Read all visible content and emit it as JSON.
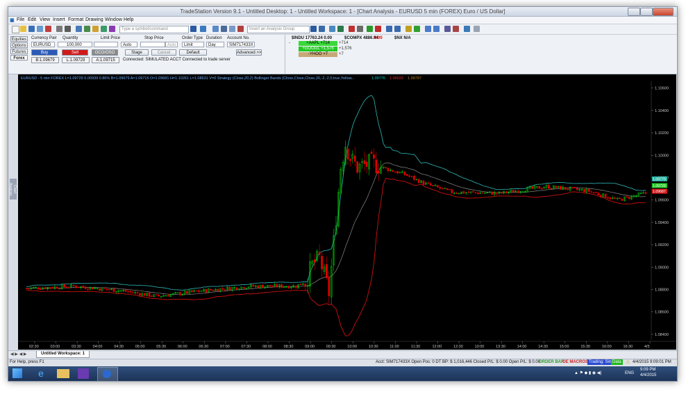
{
  "window": {
    "title": "TradeStation Version 9.1 - Untitled Desktop: 1 - Untitled Workspace: 1 - [Chart Analysis - EURUSD 5 min (FOREX) Euro / US Dollar]"
  },
  "menu": [
    "File",
    "Edit",
    "View",
    "Insert",
    "Format",
    "Drawing",
    "Window",
    "Help"
  ],
  "toolbar": {
    "symbol_placeholder": "Type a symbol/command",
    "analysis_placeholder": "Insert an Analysis Group"
  },
  "order_bar": {
    "tabs": [
      "Equities",
      "Options",
      "Futures",
      "Forex"
    ],
    "labels": {
      "currency_pair": "Currency Pair",
      "quantity": "Quantity",
      "limit_price": "Limit Price",
      "stop_price": "Stop Price",
      "order_type": "Order Type",
      "duration": "Duration",
      "account_no": "Account No."
    },
    "currency_pair": "EURUSD",
    "quantity": "100,000",
    "stop_mode": "Auto",
    "stop_mode2": "Auto",
    "order_type": "Limit",
    "duration": "Day",
    "account": "SIM717433X",
    "buy": "Buy",
    "sell": "Sell",
    "oco": "OCO/OSO",
    "stage": "Stage",
    "cancel": "Cancel",
    "default": "Default",
    "advanced": "Advanced >>",
    "bid": "B:1.09679",
    "last": "L:1.09729",
    "ask": "A:1.09715",
    "connection": "Connected: SIMULATED ACCT   Connected to trade server"
  },
  "market": {
    "indu": "$INDU 17763.24 0.00",
    "indu_change": "-",
    "compx": "$COMPX 4886.94",
    "compx_change": "0.00",
    "spx": "$NX N/A",
    "aapl": "+AAPL +714",
    "aapl_side": "+714",
    "googl": "+GOOGL +1,576",
    "googl_side": "+1,576",
    "yhoo": "-YHOO +7",
    "yhoo_side": "+7"
  },
  "chart": {
    "header": "EURUSD - 5 min  FOREX  L=1.09729  0.00939  0.86%  B=1.09679  A=1.09715  O=1.09681  H=1.10261  L=1.08631  V=0   Strategy (Close,20,2)   Bollinger Bands (Close,Close,Close,20,-2,-2,0,true,Yellow...",
    "header_val1": "1.09776",
    "header_val2": "1.09033",
    "header_val3": "1.09797",
    "y_labels": [
      "1.10600",
      "1.10400",
      "1.10200",
      "1.10000",
      "1.09800",
      "1.09600",
      "1.09400",
      "1.09200",
      "1.09000",
      "1.08800",
      "1.08600",
      "1.08400"
    ],
    "x_labels": [
      "02:30",
      "03:00",
      "03:30",
      "04:00",
      "04:30",
      "05:00",
      "05:30",
      "06:00",
      "06:30",
      "07:00",
      "07:30",
      "08:00",
      "08:30",
      "09:00",
      "09:30",
      "10:00",
      "10:30",
      "11:00",
      "11:30",
      "12:00",
      "12:30",
      "13:00",
      "13:30",
      "14:00",
      "14:30",
      "15:00",
      "15:30",
      "16:00",
      "16:30",
      "4/5"
    ],
    "price_tags": [
      "1.09779",
      "1.09729",
      "1.09687"
    ],
    "side_label": "Chart Analysis"
  },
  "chart_data": {
    "type": "candlestick",
    "y_range": [
      1.0835,
      1.1066
    ],
    "colors": {
      "up": "#00c800",
      "down": "#e00000",
      "upper_band": "#2aa6a6",
      "mid_band": "#8a8a8a",
      "lower_band": "#cc1111",
      "background": "#000000"
    },
    "note_visible": false
  },
  "workspace_tab": "Untitled Workspace: 1",
  "status": {
    "help": "For Help, press F1",
    "acct": "Acct: SIM717433X  Open Pos: 0  DT BP: $ 1,016,446  Closed P/L: $ 0.00  Open P/L: $ 0.00",
    "order_bar": "ORDER BAR",
    "oe_macros": "OE MACROS",
    "trading": "Trading: Sim",
    "data": "Data",
    "date": "4/4/2015 9:09:01 PM"
  },
  "taskbar": {
    "time": "9:09 PM",
    "date": "4/4/2015",
    "lang": "ENG"
  }
}
